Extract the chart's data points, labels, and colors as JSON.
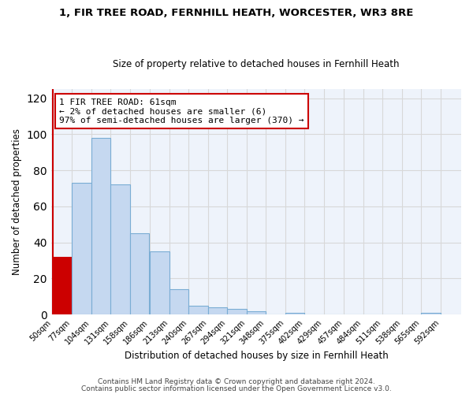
{
  "title": "1, FIR TREE ROAD, FERNHILL HEATH, WORCESTER, WR3 8RE",
  "subtitle": "Size of property relative to detached houses in Fernhill Heath",
  "xlabel": "Distribution of detached houses by size in Fernhill Heath",
  "ylabel": "Number of detached properties",
  "bar_edges": [
    50,
    77,
    104,
    131,
    158,
    186,
    213,
    240,
    267,
    294,
    321,
    348,
    375,
    402,
    429,
    457,
    484,
    511,
    538,
    565,
    592
  ],
  "bar_heights": [
    32,
    73,
    98,
    72,
    45,
    35,
    14,
    5,
    4,
    3,
    2,
    0,
    1,
    0,
    0,
    0,
    0,
    0,
    0,
    1
  ],
  "tick_labels": [
    "50sqm",
    "77sqm",
    "104sqm",
    "131sqm",
    "158sqm",
    "186sqm",
    "213sqm",
    "240sqm",
    "267sqm",
    "294sqm",
    "321sqm",
    "348sqm",
    "375sqm",
    "402sqm",
    "429sqm",
    "457sqm",
    "484sqm",
    "511sqm",
    "538sqm",
    "565sqm",
    "592sqm"
  ],
  "bar_color": "#c5d8f0",
  "bar_edge_color": "#7aadd4",
  "highlight_color": "#cc0000",
  "highlight_bar_index": 0,
  "ylim": [
    0,
    125
  ],
  "yticks": [
    0,
    20,
    40,
    60,
    80,
    100,
    120
  ],
  "annotation_title": "1 FIR TREE ROAD: 61sqm",
  "annotation_line1": "← 2% of detached houses are smaller (6)",
  "annotation_line2": "97% of semi-detached houses are larger (370) →",
  "footer1": "Contains HM Land Registry data © Crown copyright and database right 2024.",
  "footer2": "Contains public sector information licensed under the Open Government Licence v3.0.",
  "background_color": "#ffffff",
  "plot_bg_color": "#eef3fb",
  "grid_color": "#d8d8d8"
}
